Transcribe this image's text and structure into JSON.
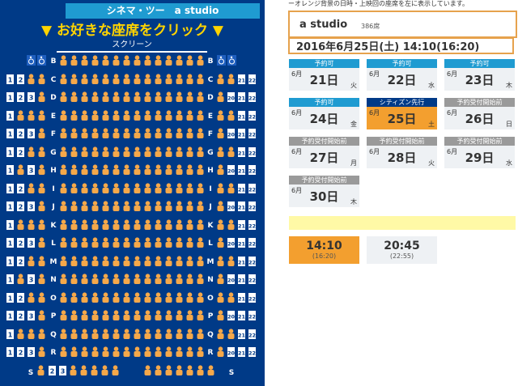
{
  "header": {
    "theater_bar": "シネマ・ツー　a studio",
    "headline": "▼ お好きな座席をクリック ▼",
    "screen_label": "スクリーン"
  },
  "notice": "ーオレンジ背景の日時・上映回の座席を左に表示しています。",
  "theater": {
    "name": "a studio",
    "capacity": "386席"
  },
  "selected_datetime": "2016年6月25日(土) 14:10(16:20)",
  "dates": [
    {
      "label": "予約可",
      "month": "6月",
      "day": "21日",
      "weekday": "火",
      "status_color": "#1f9bd1",
      "selected": false
    },
    {
      "label": "予約可",
      "month": "6月",
      "day": "22日",
      "weekday": "水",
      "status_color": "#1f9bd1",
      "selected": false
    },
    {
      "label": "予約可",
      "month": "6月",
      "day": "23日",
      "weekday": "木",
      "status_color": "#1f9bd1",
      "selected": false
    },
    {
      "label": "予約可",
      "month": "6月",
      "day": "24日",
      "weekday": "金",
      "status_color": "#1f9bd1",
      "selected": false
    },
    {
      "label": "シティズン先行",
      "month": "6月",
      "day": "25日",
      "weekday": "土",
      "status_color": "#003a87",
      "selected": true
    },
    {
      "label": "予約受付開始前",
      "month": "6月",
      "day": "26日",
      "weekday": "日",
      "status_color": "#9a9a9a",
      "selected": false
    },
    {
      "label": "予約受付開始前",
      "month": "6月",
      "day": "27日",
      "weekday": "月",
      "status_color": "#9a9a9a",
      "selected": false
    },
    {
      "label": "予約受付開始前",
      "month": "6月",
      "day": "28日",
      "weekday": "火",
      "status_color": "#9a9a9a",
      "selected": false
    },
    {
      "label": "予約受付開始前",
      "month": "6月",
      "day": "29日",
      "weekday": "水",
      "status_color": "#9a9a9a",
      "selected": false
    },
    {
      "label": "予約受付開始前",
      "month": "6月",
      "day": "30日",
      "weekday": "木",
      "status_color": "#9a9a9a",
      "selected": false
    }
  ],
  "showtimes": [
    {
      "time": "14:10",
      "end": "(16:20)",
      "selected": true
    },
    {
      "time": "20:45",
      "end": "(22:55)",
      "selected": false
    }
  ],
  "row_letters": [
    "B",
    "C",
    "D",
    "E",
    "F",
    "G",
    "H",
    "I",
    "J",
    "K",
    "L",
    "M",
    "N",
    "O",
    "P",
    "Q",
    "R",
    "S"
  ],
  "seat_number_labels": [
    "1",
    "2",
    "3",
    "20",
    "21",
    "22"
  ],
  "wheelchair_icon": "wheelchair-icon",
  "colors": {
    "panel": "#003a87",
    "accent": "#1f9bd1",
    "selected": "#f39f2f",
    "occupied": "#f5a84a"
  }
}
